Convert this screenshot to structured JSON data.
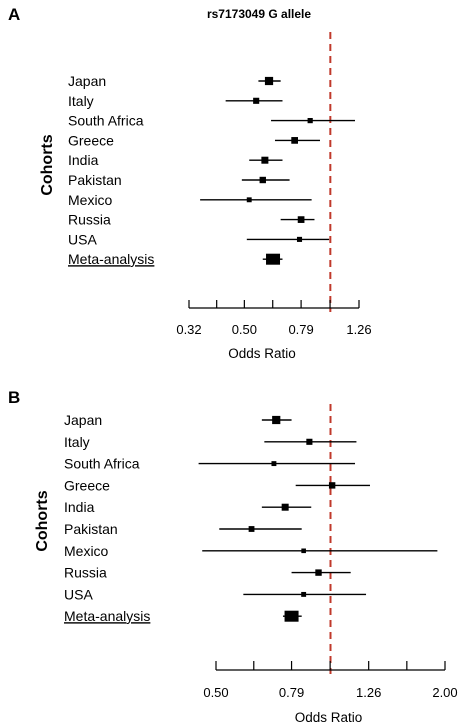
{
  "chart_data": [
    {
      "panel_label": "A",
      "title": "rs7173049 G allele",
      "type": "forest",
      "ylabel": "Cohorts",
      "xlabel": "Odds Ratio",
      "x_scale": "log",
      "xlim": [
        0.32,
        1.26
      ],
      "xticks": [
        0.32,
        0.5,
        0.79,
        1.26
      ],
      "xtick_labels": [
        "0.32",
        "0.50",
        "0.79",
        "1.26"
      ],
      "reference_line": 1.0,
      "reference_line_color": "#c0392b",
      "rows": [
        {
          "label": "Japan",
          "or": 0.61,
          "lo": 0.56,
          "hi": 0.67,
          "weight": 0.7
        },
        {
          "label": "Italy",
          "or": 0.55,
          "lo": 0.43,
          "hi": 0.68,
          "weight": 0.35
        },
        {
          "label": "South Africa",
          "or": 0.85,
          "lo": 0.62,
          "hi": 1.22,
          "weight": 0.2
        },
        {
          "label": "Greece",
          "or": 0.75,
          "lo": 0.64,
          "hi": 0.92,
          "weight": 0.45
        },
        {
          "label": "India",
          "or": 0.59,
          "lo": 0.52,
          "hi": 0.68,
          "weight": 0.5
        },
        {
          "label": "Pakistan",
          "or": 0.58,
          "lo": 0.49,
          "hi": 0.72,
          "weight": 0.4
        },
        {
          "label": "Mexico",
          "or": 0.52,
          "lo": 0.35,
          "hi": 0.86,
          "weight": 0.15
        },
        {
          "label": "Russia",
          "or": 0.79,
          "lo": 0.67,
          "hi": 0.88,
          "weight": 0.45
        },
        {
          "label": "USA",
          "or": 0.78,
          "lo": 0.51,
          "hi": 0.99,
          "weight": 0.18
        },
        {
          "label": "Meta-analysis",
          "or": 0.63,
          "lo": 0.58,
          "hi": 0.68,
          "weight": 1.0,
          "summary": true
        }
      ]
    },
    {
      "panel_label": "B",
      "title": "",
      "type": "forest",
      "ylabel": "Cohorts",
      "xlabel": "Odds Ratio",
      "x_scale": "log",
      "xlim": [
        0.5,
        2.0
      ],
      "xticks": [
        0.5,
        0.79,
        1.26,
        2.0
      ],
      "xtick_labels": [
        "0.50",
        "0.79",
        "1.26",
        "2.00"
      ],
      "reference_line": 1.0,
      "reference_line_color": "#c0392b",
      "rows": [
        {
          "label": "Japan",
          "or": 0.72,
          "lo": 0.66,
          "hi": 0.79,
          "weight": 0.7
        },
        {
          "label": "Italy",
          "or": 0.88,
          "lo": 0.67,
          "hi": 1.17,
          "weight": 0.35
        },
        {
          "label": "South Africa",
          "or": 0.71,
          "lo": 0.45,
          "hi": 1.16,
          "weight": 0.15
        },
        {
          "label": "Greece",
          "or": 1.01,
          "lo": 0.81,
          "hi": 1.27,
          "weight": 0.4
        },
        {
          "label": "India",
          "or": 0.76,
          "lo": 0.66,
          "hi": 0.89,
          "weight": 0.5
        },
        {
          "label": "Pakistan",
          "or": 0.62,
          "lo": 0.51,
          "hi": 0.84,
          "weight": 0.3
        },
        {
          "label": "Mexico",
          "or": 0.85,
          "lo": 0.46,
          "hi": 1.91,
          "weight": 0.1
        },
        {
          "label": "Russia",
          "or": 0.93,
          "lo": 0.79,
          "hi": 1.13,
          "weight": 0.4
        },
        {
          "label": "USA",
          "or": 0.85,
          "lo": 0.59,
          "hi": 1.24,
          "weight": 0.15
        },
        {
          "label": "Meta-analysis",
          "or": 0.79,
          "lo": 0.75,
          "hi": 0.84,
          "weight": 1.0,
          "summary": true
        }
      ]
    }
  ]
}
